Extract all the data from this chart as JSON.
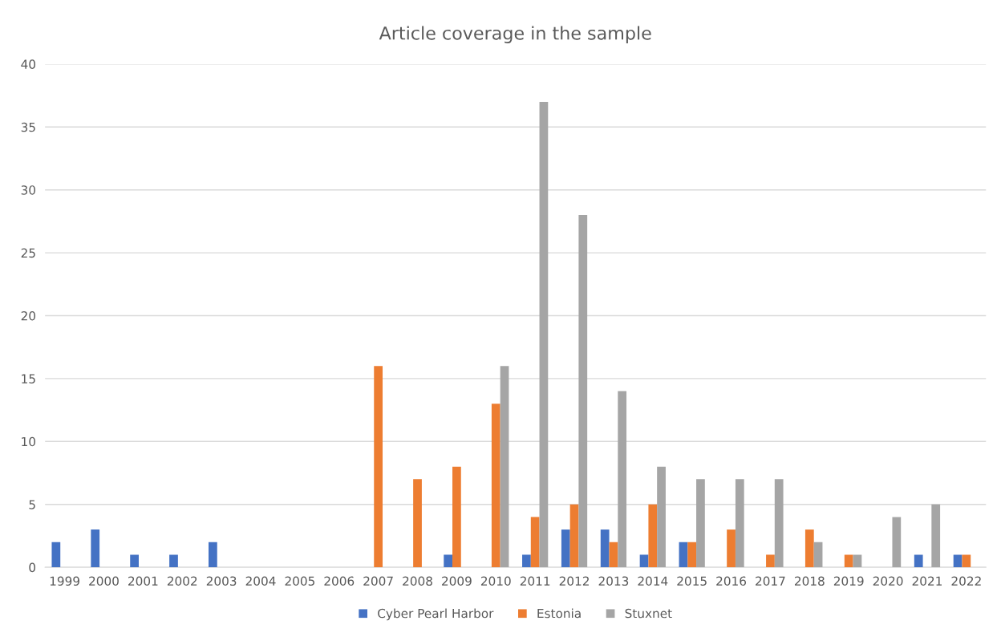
{
  "chart_data": {
    "type": "bar",
    "title": "Article coverage in the sample",
    "categories": [
      "1999",
      "2000",
      "2001",
      "2002",
      "2003",
      "2004",
      "2005",
      "2006",
      "2007",
      "2008",
      "2009",
      "2010",
      "2011",
      "2012",
      "2013",
      "2014",
      "2015",
      "2016",
      "2017",
      "2018",
      "2019",
      "2020",
      "2021",
      "2022"
    ],
    "series": [
      {
        "name": "Cyber Pearl Harbor",
        "color": "#4472c4",
        "values": [
          2,
          3,
          1,
          1,
          2,
          0,
          0,
          0,
          0,
          0,
          1,
          0,
          1,
          3,
          3,
          1,
          2,
          0,
          0,
          0,
          0,
          0,
          1,
          1
        ]
      },
      {
        "name": "Estonia",
        "color": "#ed7d31",
        "values": [
          0,
          0,
          0,
          0,
          0,
          0,
          0,
          0,
          16,
          7,
          8,
          13,
          4,
          5,
          2,
          5,
          2,
          3,
          1,
          3,
          1,
          0,
          0,
          1
        ]
      },
      {
        "name": "Stuxnet",
        "color": "#a5a5a5",
        "values": [
          0,
          0,
          0,
          0,
          0,
          0,
          0,
          0,
          0,
          0,
          0,
          16,
          37,
          28,
          14,
          8,
          7,
          7,
          7,
          2,
          1,
          4,
          5,
          0
        ]
      }
    ],
    "ylim": [
      0,
      40
    ],
    "yticks": [
      0,
      5,
      10,
      15,
      20,
      25,
      30,
      35,
      40
    ],
    "grid": "y",
    "legend": "bottom"
  }
}
